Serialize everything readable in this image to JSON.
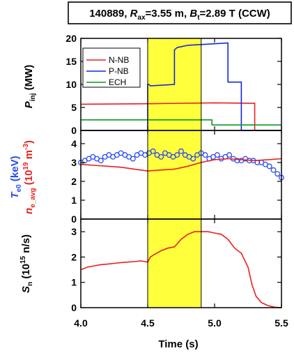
{
  "title": {
    "shot": "140889, ",
    "r_sym": "R",
    "r_sub": "ax",
    "r_val": "=3.55 m, ",
    "b_sym": "B",
    "b_sub": "t",
    "b_val": "=2.89 T (CCW)"
  },
  "colors": {
    "nnb": "#e8201c",
    "pnb": "#1428d8",
    "ech": "#0a9a1e",
    "te": "#2a4cf0",
    "ne": "#e8201c",
    "sn": "#e8201c",
    "highlight": "#ffff3c"
  },
  "panels": {
    "top": {
      "ylabel_sym": "P",
      "ylabel_sub": "inj",
      "ylabel_unit": " (MW)",
      "legend": [
        "N-NB",
        "P-NB",
        "ECH"
      ]
    },
    "mid": {
      "ylabel_te_sym": "T",
      "ylabel_te_sub": "e0",
      "ylabel_te_unit": " (keV)",
      "ylabel_ne_sym": "n",
      "ylabel_ne_sub": "e_avg",
      "ylabel_ne_unit_a": " (10",
      "ylabel_ne_exp": "19",
      "ylabel_ne_unit_b": " m",
      "ylabel_ne_exp2": "-3",
      "ylabel_ne_unit_c": ")"
    },
    "bot": {
      "ylabel_sym": "S",
      "ylabel_sub": "n",
      "ylabel_unit_a": " (10",
      "ylabel_exp": "15",
      "ylabel_unit_b": " n/s)"
    }
  },
  "xlabel": "Time (s)",
  "x_ticks": [
    "4.0",
    "4.5",
    "5.0",
    "5.5"
  ],
  "chart_data": {
    "type": "line",
    "xlim": [
      4.0,
      5.5
    ],
    "shaded_interval": [
      4.5,
      4.9
    ],
    "panels": [
      {
        "name": "top",
        "ylim": [
          0,
          20
        ],
        "yticks": [
          "0",
          "5",
          "10",
          "15",
          "20"
        ],
        "legend_position": "top-left",
        "series": [
          {
            "name": "N-NB",
            "x": [
              4.0,
              4.5,
              5.0,
              5.3,
              5.3,
              5.5
            ],
            "y": [
              5.7,
              5.8,
              6.0,
              5.9,
              0,
              0
            ]
          },
          {
            "name": "P-NB",
            "x": [
              4.0,
              4.5,
              4.5,
              4.51,
              4.52,
              4.7,
              4.7,
              4.72,
              4.8,
              5.1,
              5.1,
              5.2,
              5.2,
              5.5
            ],
            "y": [
              0,
              0,
              10.0,
              10.0,
              9.7,
              10.0,
              17.5,
              18.0,
              18.5,
              19.0,
              10.5,
              10.5,
              0,
              0
            ]
          },
          {
            "name": "ECH",
            "x": [
              4.0,
              4.98,
              4.98,
              5.5
            ],
            "y": [
              2.3,
              2.3,
              1.2,
              1.2
            ]
          }
        ]
      },
      {
        "name": "mid",
        "ylim": [
          0,
          4.7
        ],
        "yticks": [
          "0",
          "1",
          "2",
          "3",
          "4"
        ],
        "series": [
          {
            "name": "Te0",
            "marker": "circle",
            "x": [
              4.0,
              4.03,
              4.06,
              4.09,
              4.12,
              4.15,
              4.18,
              4.21,
              4.24,
              4.27,
              4.3,
              4.33,
              4.36,
              4.39,
              4.42,
              4.45,
              4.48,
              4.51,
              4.54,
              4.57,
              4.6,
              4.63,
              4.66,
              4.69,
              4.72,
              4.75,
              4.78,
              4.81,
              4.84,
              4.87,
              4.9,
              4.93,
              4.96,
              4.99,
              5.02,
              5.05,
              5.08,
              5.11,
              5.14,
              5.17,
              5.2,
              5.23,
              5.26,
              5.29,
              5.32,
              5.35,
              5.38,
              5.41,
              5.44,
              5.47,
              5.5
            ],
            "y": [
              3.0,
              3.1,
              3.2,
              3.3,
              3.2,
              3.1,
              3.3,
              3.4,
              3.3,
              3.4,
              3.5,
              3.4,
              3.3,
              3.2,
              3.4,
              3.5,
              3.4,
              3.5,
              3.6,
              3.4,
              3.3,
              3.5,
              3.4,
              3.3,
              3.4,
              3.6,
              3.4,
              3.3,
              3.2,
              3.4,
              3.5,
              3.4,
              3.2,
              3.3,
              3.4,
              3.2,
              3.3,
              3.4,
              3.2,
              3.1,
              3.1,
              3.2,
              3.1,
              3.1,
              3.0,
              3.0,
              2.9,
              2.8,
              2.6,
              2.4,
              2.2
            ]
          },
          {
            "name": "ne_avg",
            "x": [
              4.0,
              4.1,
              4.2,
              4.3,
              4.4,
              4.5,
              4.6,
              4.7,
              4.8,
              4.9,
              5.0,
              5.1,
              5.2,
              5.3,
              5.4,
              5.5
            ],
            "y": [
              2.9,
              2.85,
              2.8,
              2.75,
              2.65,
              2.55,
              2.6,
              2.65,
              2.8,
              3.0,
              3.15,
              3.2,
              3.15,
              3.1,
              3.15,
              3.2
            ]
          }
        ]
      },
      {
        "name": "bot",
        "ylim": [
          0,
          3.5
        ],
        "yticks": [
          "0",
          "1",
          "2",
          "3"
        ],
        "series": [
          {
            "name": "Sn",
            "x": [
              4.0,
              4.05,
              4.1,
              4.15,
              4.2,
              4.25,
              4.3,
              4.35,
              4.4,
              4.45,
              4.5,
              4.52,
              4.55,
              4.6,
              4.65,
              4.7,
              4.75,
              4.8,
              4.85,
              4.9,
              4.95,
              5.0,
              5.05,
              5.1,
              5.15,
              5.2,
              5.25,
              5.28,
              5.31,
              5.35,
              5.4,
              5.45,
              5.5
            ],
            "y": [
              1.5,
              1.6,
              1.65,
              1.7,
              1.72,
              1.75,
              1.78,
              1.8,
              1.82,
              1.85,
              1.8,
              2.0,
              2.1,
              2.25,
              2.35,
              2.4,
              2.7,
              2.9,
              3.0,
              3.0,
              3.0,
              2.95,
              2.9,
              2.7,
              2.35,
              2.15,
              1.6,
              0.9,
              0.45,
              0.2,
              0.08,
              0.02,
              0.0
            ]
          }
        ]
      }
    ]
  }
}
